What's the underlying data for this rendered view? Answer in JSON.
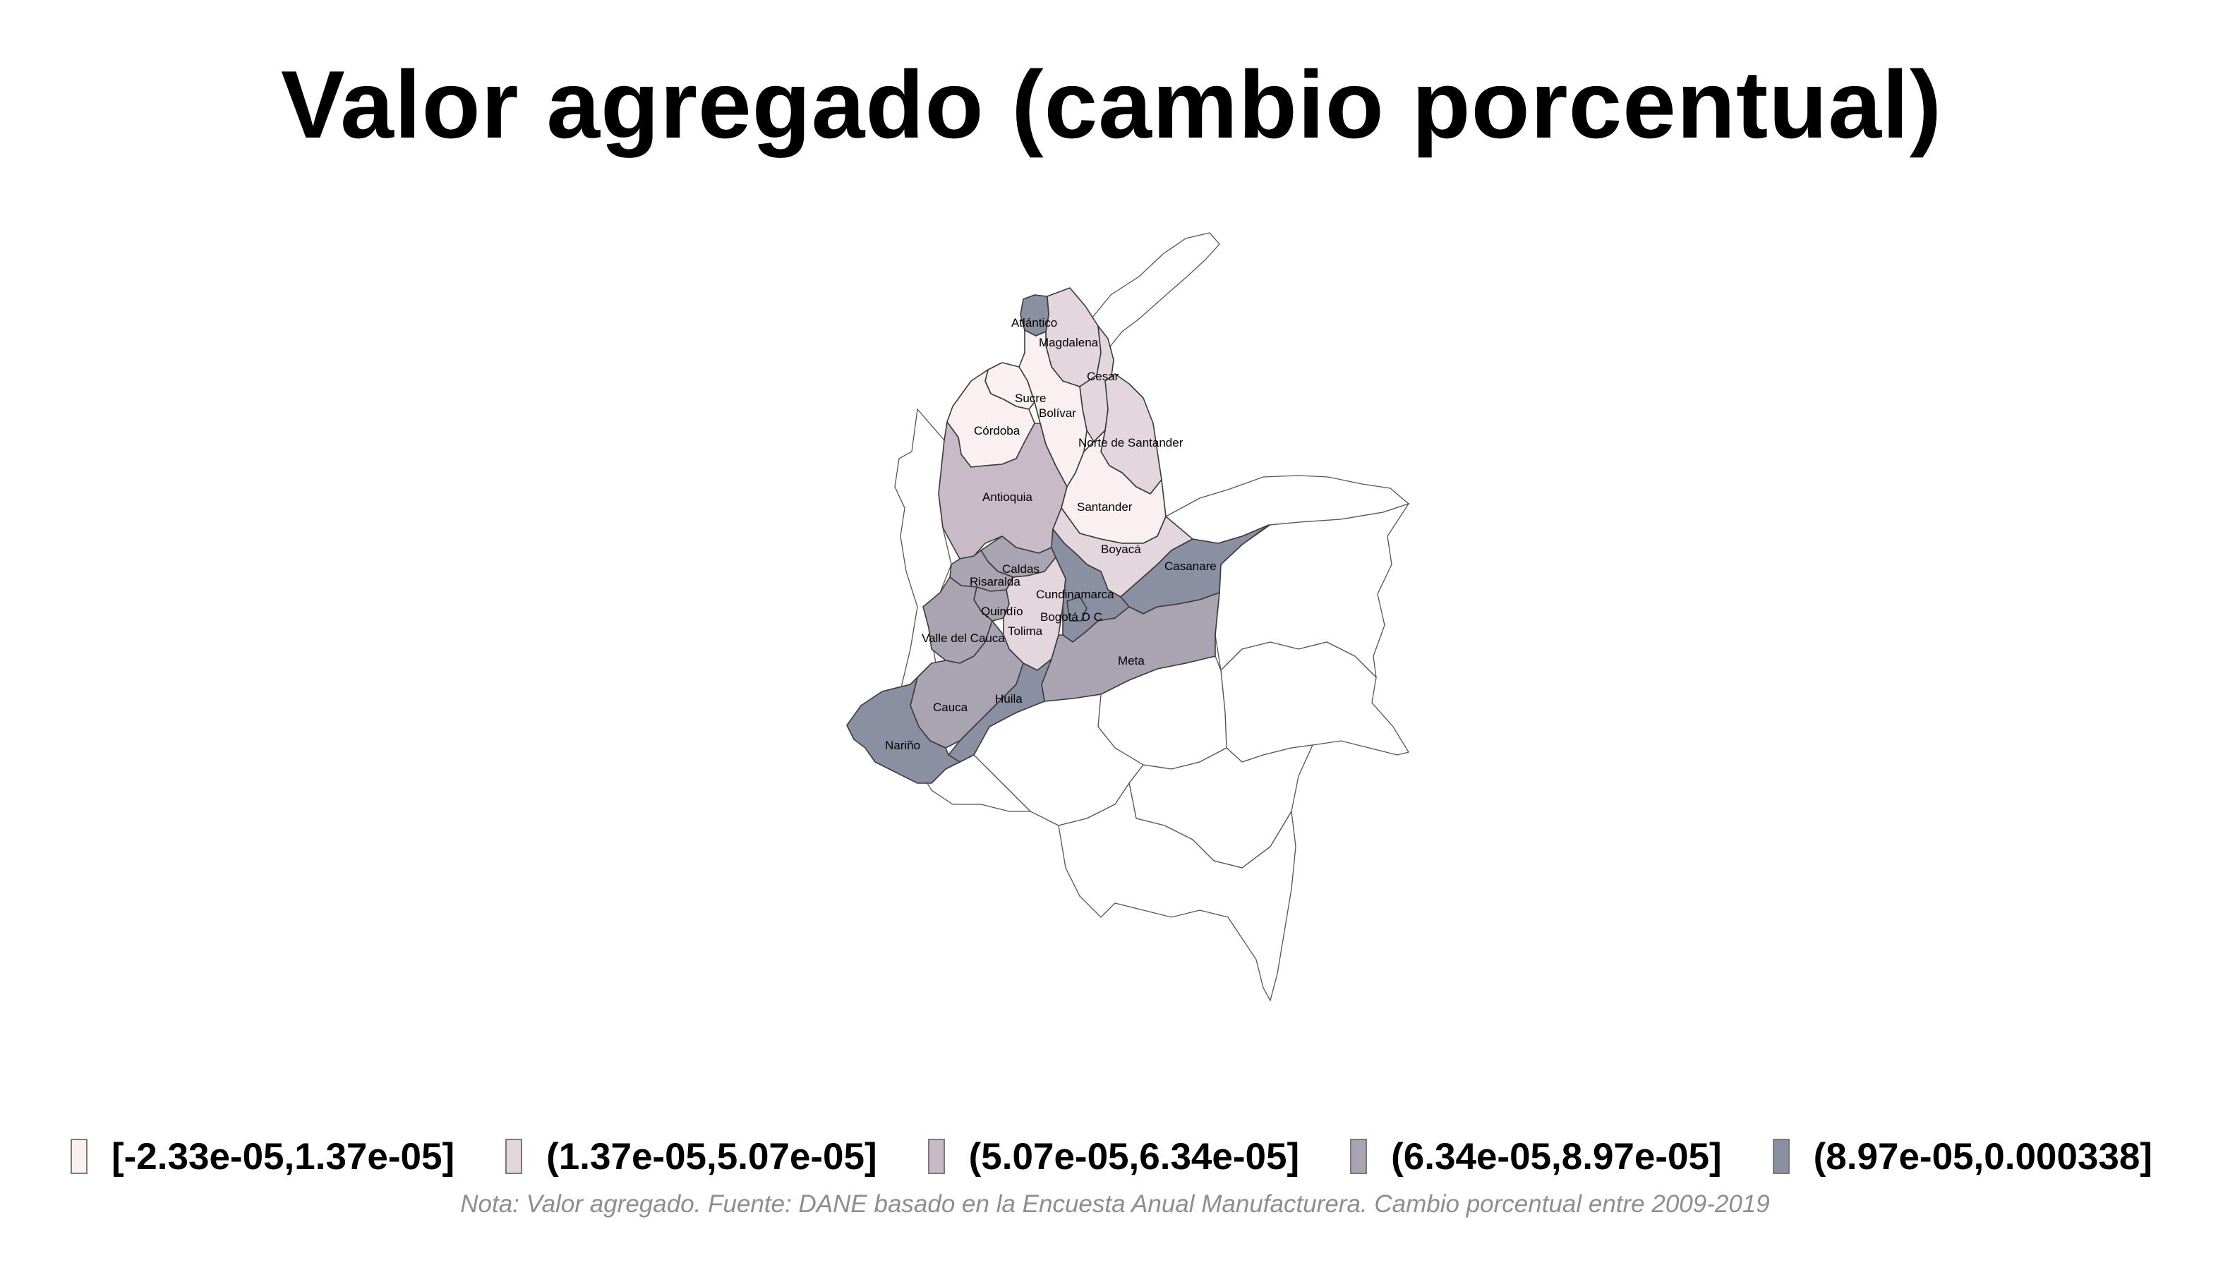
{
  "title": "Valor agregado (cambio porcentual)",
  "note": "Nota: Valor agregado. Fuente: DANE basado en la Encuesta Anual Manufacturera. Cambio porcentual entre 2009-2019",
  "legend": [
    {
      "label": "[-2.33e-05,1.37e-05]",
      "color": "#fbf0f1"
    },
    {
      "label": "(1.37e-05,5.07e-05]",
      "color": "#e3d6dc"
    },
    {
      "label": "(5.07e-05,6.34e-05]",
      "color": "#c8bbc7"
    },
    {
      "label": "(6.34e-05,8.97e-05]",
      "color": "#a9a3b2"
    },
    {
      "label": "(8.97e-05,0.000338]",
      "color": "#8a90a1"
    }
  ],
  "map": {
    "departments": [
      {
        "name": "Atlántico",
        "class": 4
      },
      {
        "name": "Magdalena",
        "class": 1
      },
      {
        "name": "Cesar",
        "class": 1
      },
      {
        "name": "Sucre",
        "class": 0
      },
      {
        "name": "Bolívar",
        "class": 0
      },
      {
        "name": "Córdoba",
        "class": 0
      },
      {
        "name": "Norte de Santander",
        "class": 1
      },
      {
        "name": "Antioquia",
        "class": 2
      },
      {
        "name": "Santander",
        "class": 0
      },
      {
        "name": "Boyacá",
        "class": 1
      },
      {
        "name": "Casanare",
        "class": 4
      },
      {
        "name": "Caldas",
        "class": 3
      },
      {
        "name": "Risaralda",
        "class": 3
      },
      {
        "name": "Cundinamarca",
        "class": 4
      },
      {
        "name": "Quindío",
        "class": 3
      },
      {
        "name": "Bogotá D C",
        "class": 4
      },
      {
        "name": "Valle del Cauca",
        "class": 3
      },
      {
        "name": "Tolima",
        "class": 1
      },
      {
        "name": "Meta",
        "class": 3
      },
      {
        "name": "Huila",
        "class": 4
      },
      {
        "name": "Cauca",
        "class": 3
      },
      {
        "name": "Nariño",
        "class": 4
      }
    ]
  }
}
